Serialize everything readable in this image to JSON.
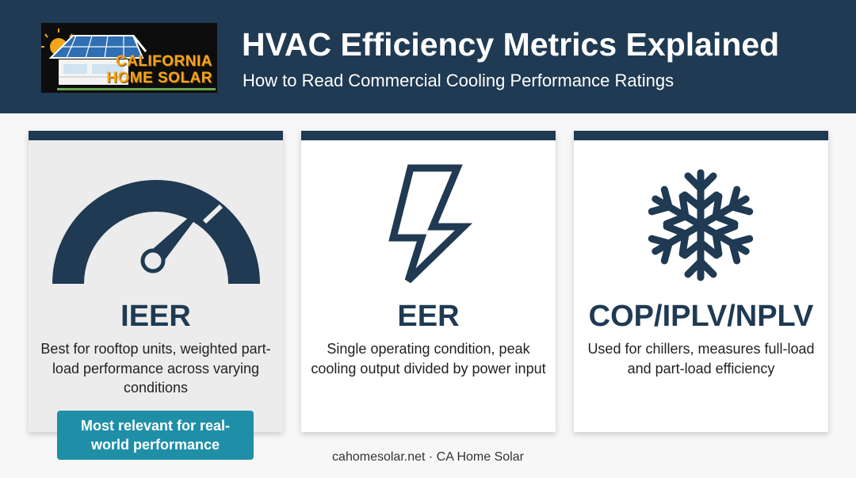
{
  "header": {
    "logo": {
      "line1": "CALIFORNIA",
      "line2": "HOME SOLAR"
    },
    "title": "HVAC Efficiency Metrics Explained",
    "subtitle": "How to Read Commercial Cooling Performance Ratings"
  },
  "cards": [
    {
      "icon": "gauge-icon",
      "metric": "IEER",
      "description": "Best for rooftop units, weighted part-load performance across varying conditions",
      "badge": "Most relevant for real-world performance"
    },
    {
      "icon": "lightning-bolt-icon",
      "metric": "EER",
      "description": "Single operating condition, peak cooling output divided by power input"
    },
    {
      "icon": "snowflake-icon",
      "metric": "COP/IPLV/NPLV",
      "description": "Used for chillers, measures full-load and part-load efficiency"
    }
  ],
  "footer": "cahomesolar.net · CA Home Solar",
  "colors": {
    "navy": "#1f3a52",
    "teal": "#1f8fa8",
    "logo_orange": "#f3a51c",
    "highlight_card": "#ececec"
  }
}
